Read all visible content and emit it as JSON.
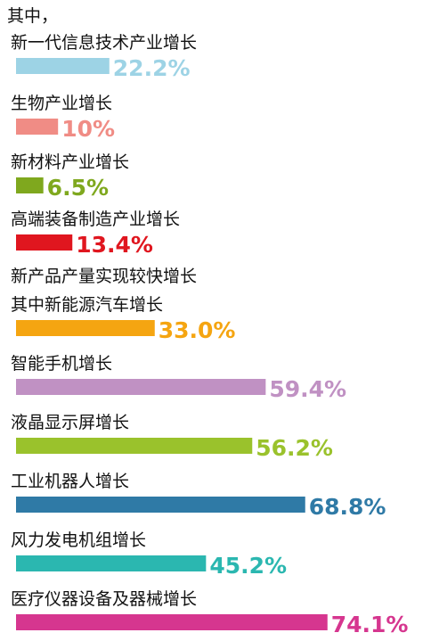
{
  "chart_data": {
    "type": "bar",
    "orientation": "horizontal",
    "intro": "其中，",
    "subheading": "新产品产量实现较快增长",
    "unit": "%",
    "categories": [
      "新一代信息技术产业增长",
      "生物产业增长",
      "新材料产业增长",
      "高端装备制造产业增长",
      "其中新能源汽车增长",
      "智能手机增长",
      "液晶显示屏增长",
      "工业机器人增长",
      "风力发电机组增长",
      "医疗仪器设备及器械增长"
    ],
    "values": [
      22.2,
      10,
      6.5,
      13.4,
      33.0,
      59.4,
      56.2,
      68.8,
      45.2,
      74.1
    ],
    "value_labels": [
      "22.2%",
      "10%",
      "6.5%",
      "13.4%",
      "33.0%",
      "59.4%",
      "56.2%",
      "68.8%",
      "45.2%",
      "74.1%"
    ],
    "colors": [
      "#9dd3e5",
      "#f08c85",
      "#7fa81e",
      "#e0161f",
      "#f5a511",
      "#c091c3",
      "#9ac22c",
      "#2f7aa6",
      "#2bb7b0",
      "#d6368f"
    ],
    "label_colors": [
      "#9dd3e5",
      "#f08c85",
      "#7fa81e",
      "#e0161f",
      "#f5a511",
      "#c091c3",
      "#9ac22c",
      "#2f7aa6",
      "#2bb7b0",
      "#d6368f"
    ],
    "grid": false,
    "legend": "none"
  }
}
